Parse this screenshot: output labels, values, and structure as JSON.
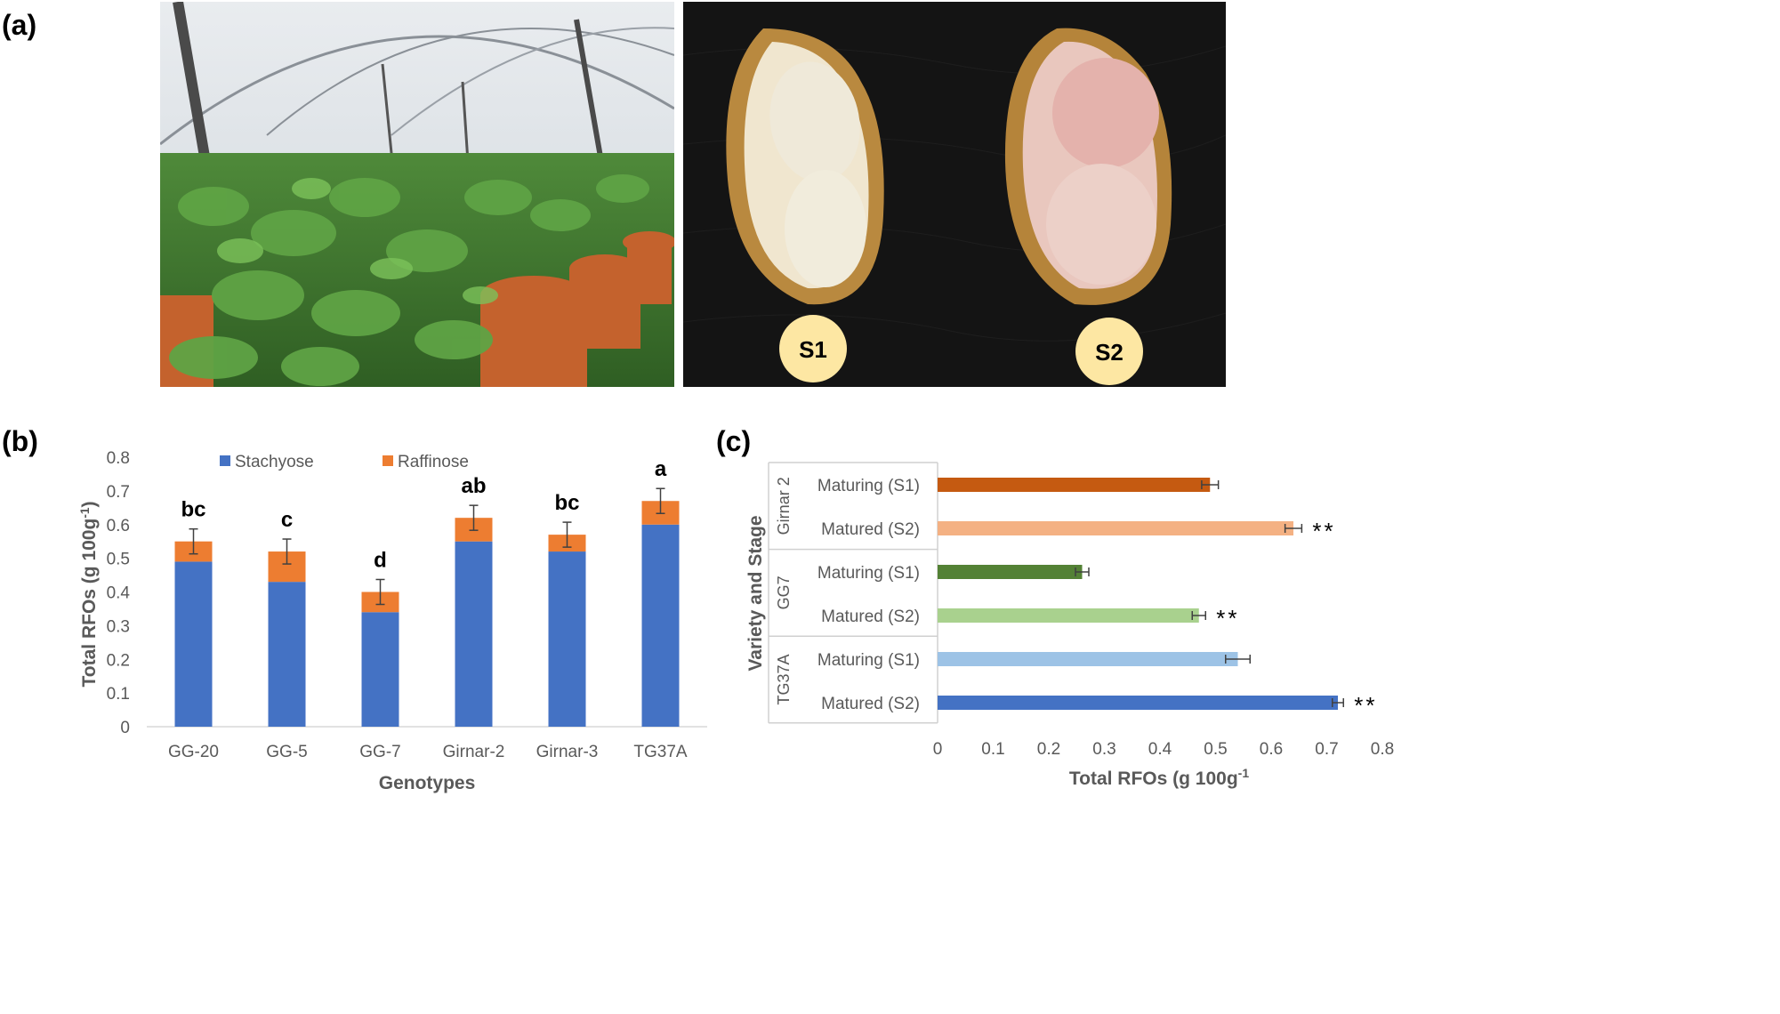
{
  "panels": {
    "a": "(a)",
    "b": "(b)",
    "c": "(c)"
  },
  "photo_right": {
    "stage1_label": "S1",
    "stage2_label": "S2"
  },
  "chart_data": [
    {
      "type": "bar",
      "stacked": true,
      "categories": [
        "GG-20",
        "GG-5",
        "GG-7",
        "Girnar-2",
        "Girnar-3",
        "TG37A"
      ],
      "series": [
        {
          "name": "Stachyose",
          "values": [
            0.49,
            0.43,
            0.34,
            0.55,
            0.52,
            0.6
          ],
          "color": "#4472C4"
        },
        {
          "name": "Raffinose",
          "values": [
            0.06,
            0.09,
            0.06,
            0.07,
            0.05,
            0.07
          ],
          "color": "#ED7D31"
        }
      ],
      "error": [
        0.037,
        0.037,
        0.037,
        0.037,
        0.037,
        0.037
      ],
      "letters": [
        "bc",
        "c",
        "d",
        "ab",
        "bc",
        "a"
      ],
      "xlabel": "Genotypes",
      "ylabel": "Total RFOs (g 100g-1)",
      "ylim": [
        0,
        0.8
      ],
      "yticks": [
        "0",
        "0.1",
        "0.2",
        "0.3",
        "0.4",
        "0.5",
        "0.6",
        "0.7",
        "0.8"
      ],
      "legend_position": "top"
    },
    {
      "type": "bar",
      "orientation": "horizontal",
      "groups": [
        {
          "name": "Girnar 2",
          "rows": [
            {
              "label": "Maturing (S1)",
              "value": 0.49,
              "error": 0.015,
              "color": "#C55A11",
              "sig": ""
            },
            {
              "label": "Matured (S2)",
              "value": 0.64,
              "error": 0.015,
              "color": "#F4B183",
              "sig": "**"
            }
          ]
        },
        {
          "name": "GG7",
          "rows": [
            {
              "label": "Maturing (S1)",
              "value": 0.26,
              "error": 0.012,
              "color": "#538135",
              "sig": ""
            },
            {
              "label": "Matured (S2)",
              "value": 0.47,
              "error": 0.012,
              "color": "#A9D18E",
              "sig": "**"
            }
          ]
        },
        {
          "name": "TG37A",
          "rows": [
            {
              "label": "Maturing (S1)",
              "value": 0.54,
              "error": 0.022,
              "color": "#9DC3E6",
              "sig": ""
            },
            {
              "label": "Matured (S2)",
              "value": 0.72,
              "error": 0.01,
              "color": "#4472C4",
              "sig": "**"
            }
          ]
        }
      ],
      "xlabel": "Total RFOs (g 100g-1",
      "ylabel": "Variety and Stage",
      "xlim": [
        0,
        0.8
      ],
      "xticks": [
        "0",
        "0.1",
        "0.2",
        "0.3",
        "0.4",
        "0.5",
        "0.6",
        "0.7",
        "0.8"
      ]
    }
  ]
}
